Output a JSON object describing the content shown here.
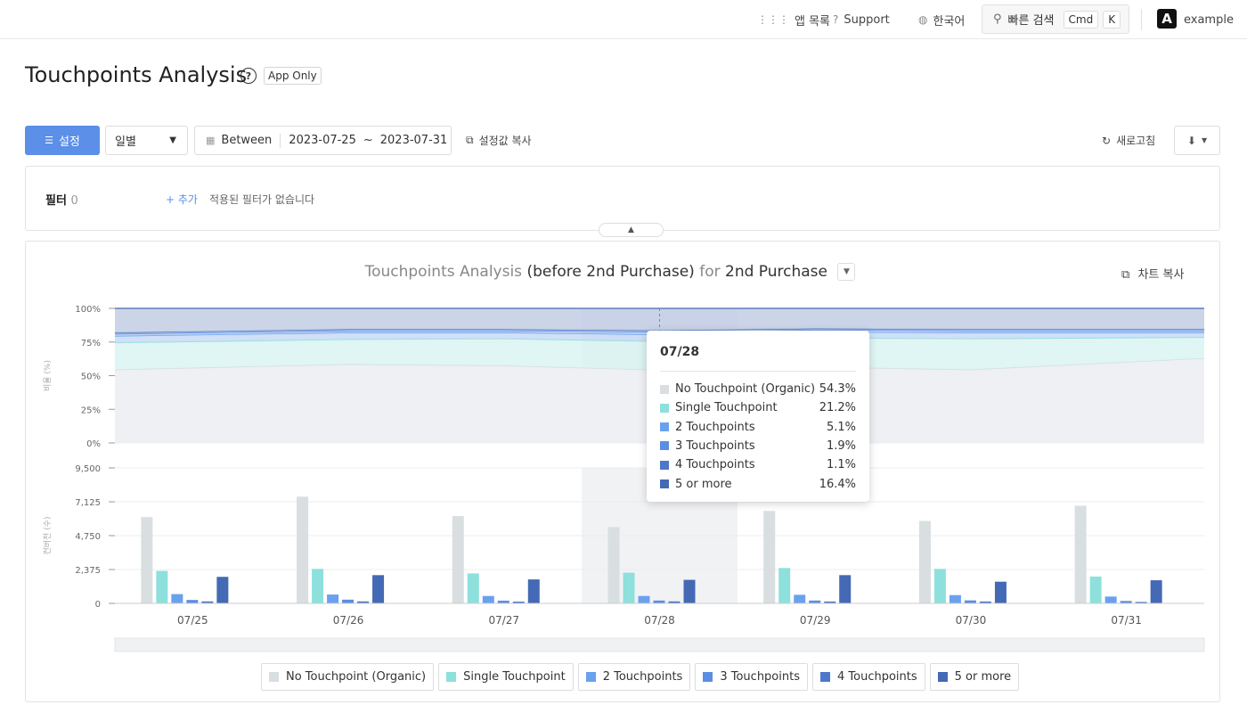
{
  "topbar": {
    "app_list": "앱 목록",
    "support": "Support",
    "language": "한국어",
    "quick_search": "빠른 검색",
    "kbd_cmd": "Cmd",
    "kbd_k": "K",
    "logo": "A",
    "user": "example"
  },
  "page": {
    "title": "Touchpoints Analysis",
    "badge": "App Only"
  },
  "toolbar": {
    "settings": "설정",
    "period": "일별",
    "date_prefix": "Between",
    "date_start": "2023-07-25",
    "date_tilde": "~",
    "date_end": "2023-07-31",
    "copy_settings": "설정값 복사",
    "refresh": "새로고침"
  },
  "filter": {
    "label": "필터",
    "count": "0",
    "add": "+ 추가",
    "empty": "적용된 필터가 없습니다"
  },
  "chart": {
    "title_p1": "Touchpoints Analysis",
    "title_p2": "(before 2nd Purchase)",
    "title_p3": "for",
    "title_p4": "2nd Purchase",
    "copy": "차트 복사"
  },
  "tooltip": {
    "date": "07/28",
    "rows": [
      {
        "label": "No Touchpoint (Organic)",
        "value": "54.3%"
      },
      {
        "label": "Single Touchpoint",
        "value": "21.2%"
      },
      {
        "label": "2 Touchpoints",
        "value": "5.1%"
      },
      {
        "label": "3 Touchpoints",
        "value": "1.9%"
      },
      {
        "label": "4 Touchpoints",
        "value": "1.1%"
      },
      {
        "label": "5 or more",
        "value": "16.4%"
      }
    ]
  },
  "colors": {
    "organic": "#d9dee1",
    "single": "#8ee0dc",
    "t2": "#6aa1ef",
    "t3": "#5b8ee2",
    "t4": "#4d78c9",
    "t5": "#4469b5",
    "accent": "#5b8fe8"
  },
  "chart_data": [
    {
      "type": "area",
      "ylabel": "비율 (%)",
      "categories": [
        "07/25",
        "07/26",
        "07/27",
        "07/28",
        "07/29",
        "07/30",
        "07/31"
      ],
      "yticks": [
        "100%",
        "75%",
        "50%",
        "25%",
        "0%"
      ],
      "ylim": [
        0,
        100
      ],
      "stacked": true,
      "series": [
        {
          "name": "No Touchpoint (Organic)",
          "values": [
            54.5,
            58.5,
            57.5,
            54.3,
            56.5,
            54.5,
            63
          ]
        },
        {
          "name": "Single Touchpoint",
          "values": [
            20,
            18.5,
            20,
            21.2,
            21.5,
            23,
            15.5
          ]
        },
        {
          "name": "2 Touchpoints",
          "values": [
            5,
            5,
            4.5,
            5.1,
            4.5,
            4.5,
            3.5
          ]
        },
        {
          "name": "3 Touchpoints",
          "values": [
            1.5,
            1.5,
            1.5,
            1.9,
            1.5,
            1.5,
            1.5
          ]
        },
        {
          "name": "4 Touchpoints",
          "values": [
            1,
            1,
            1,
            1.1,
            1,
            1,
            1
          ]
        },
        {
          "name": "5 or more",
          "values": [
            18,
            15.5,
            15.5,
            16.4,
            15,
            15.5,
            15.5
          ]
        }
      ]
    },
    {
      "type": "bar",
      "ylabel": "컨버전 (수)",
      "categories": [
        "07/25",
        "07/26",
        "07/27",
        "07/28",
        "07/29",
        "07/30",
        "07/31"
      ],
      "yticks": [
        "9,500",
        "7,125",
        "4,750",
        "2,375",
        "0"
      ],
      "ylim": [
        0,
        9500
      ],
      "series": [
        {
          "name": "No Touchpoint (Organic)",
          "values": [
            6050,
            7480,
            6120,
            5350,
            6480,
            5780,
            6850
          ]
        },
        {
          "name": "Single Touchpoint",
          "values": [
            2280,
            2420,
            2100,
            2150,
            2480,
            2420,
            1880
          ]
        },
        {
          "name": "2 Touchpoints",
          "values": [
            650,
            620,
            520,
            520,
            600,
            580,
            480
          ]
        },
        {
          "name": "3 Touchpoints",
          "values": [
            240,
            260,
            190,
            200,
            200,
            210,
            170
          ]
        },
        {
          "name": "4 Touchpoints",
          "values": [
            140,
            140,
            120,
            140,
            130,
            130,
            100
          ]
        },
        {
          "name": "5 or more",
          "values": [
            1860,
            1980,
            1680,
            1650,
            1980,
            1520,
            1620
          ]
        }
      ]
    }
  ]
}
